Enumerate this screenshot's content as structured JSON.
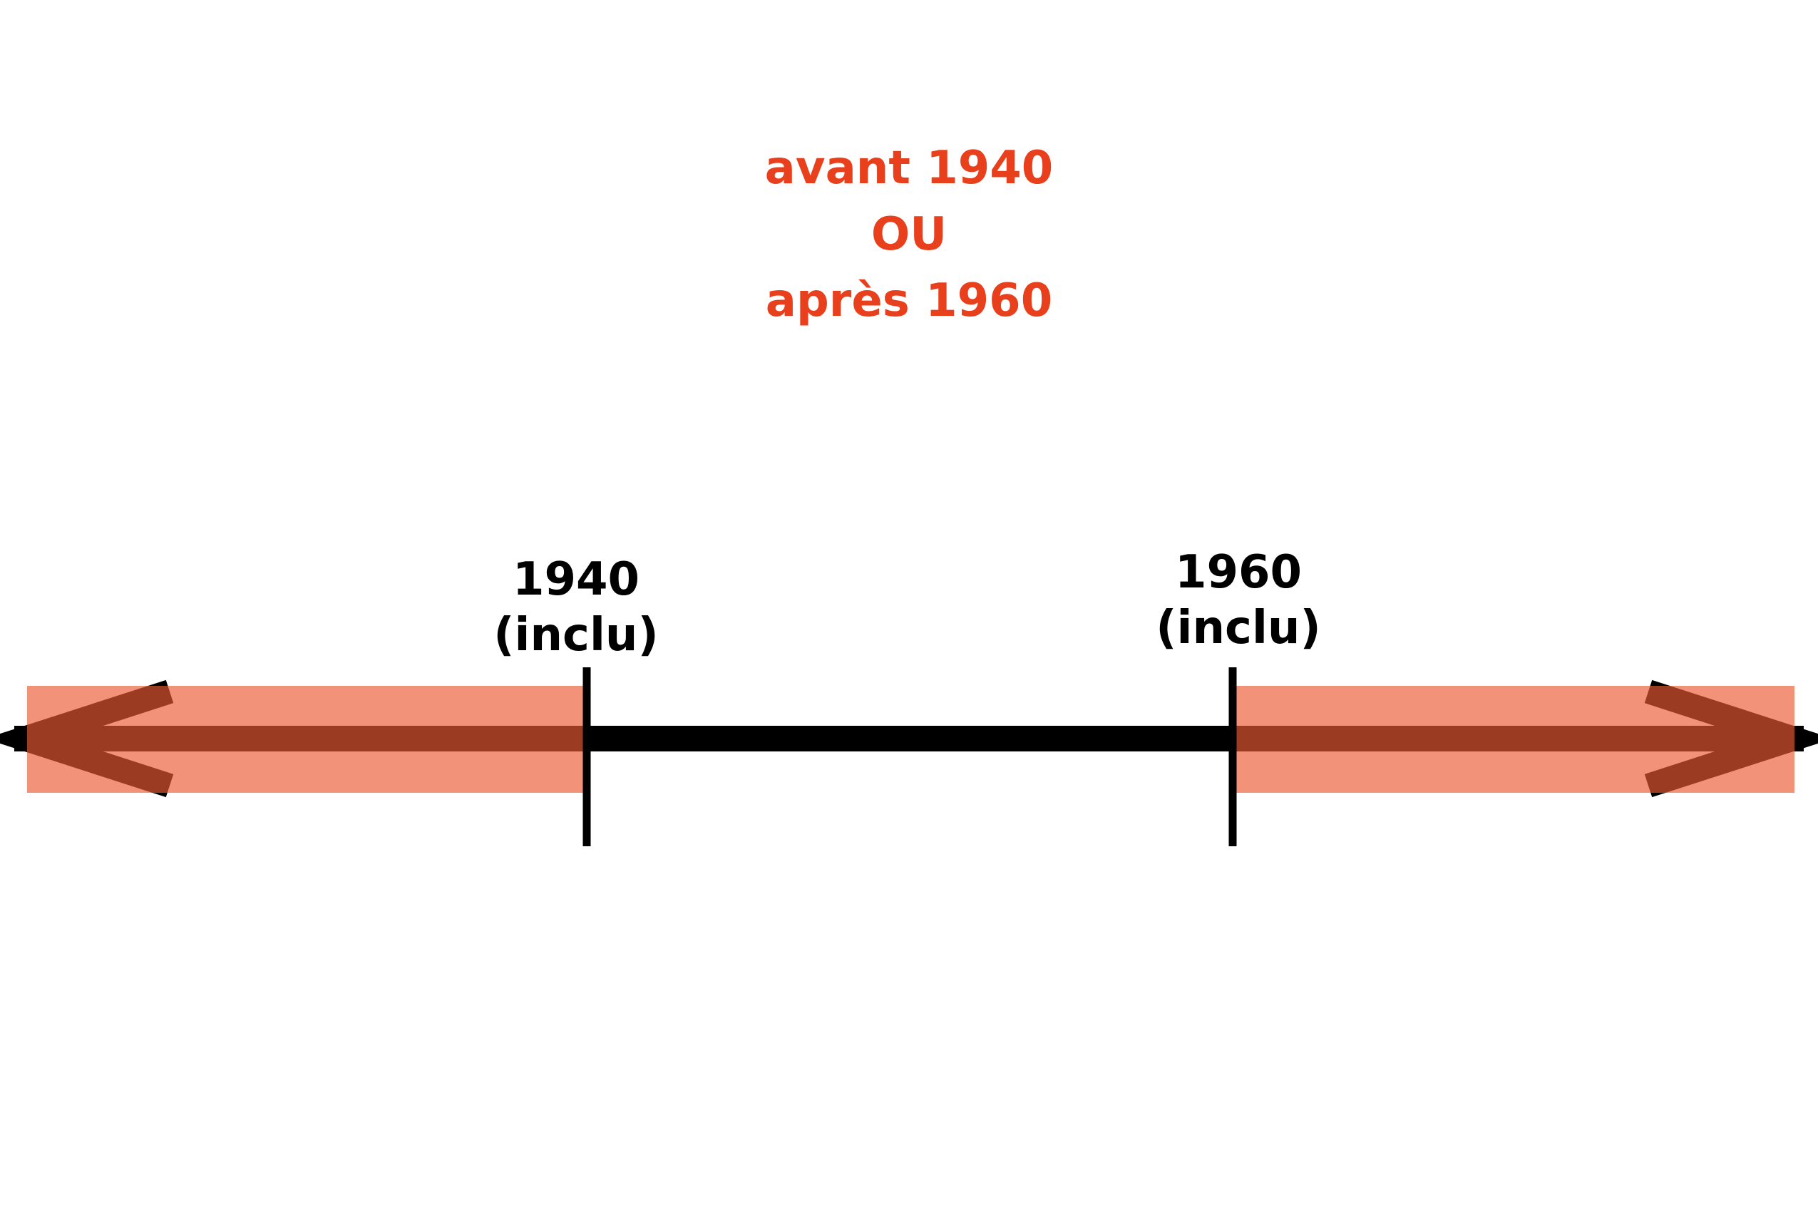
{
  "title": {
    "line1": "avant 1940",
    "line2": "OU",
    "line3": "après 1960"
  },
  "ticks": [
    {
      "year": "1940",
      "note": "(inclu)"
    },
    {
      "year": "1960",
      "note": "(inclu)"
    }
  ],
  "colors": {
    "title": "#e8401c",
    "highlight": "#f08060",
    "line": "#000000"
  }
}
